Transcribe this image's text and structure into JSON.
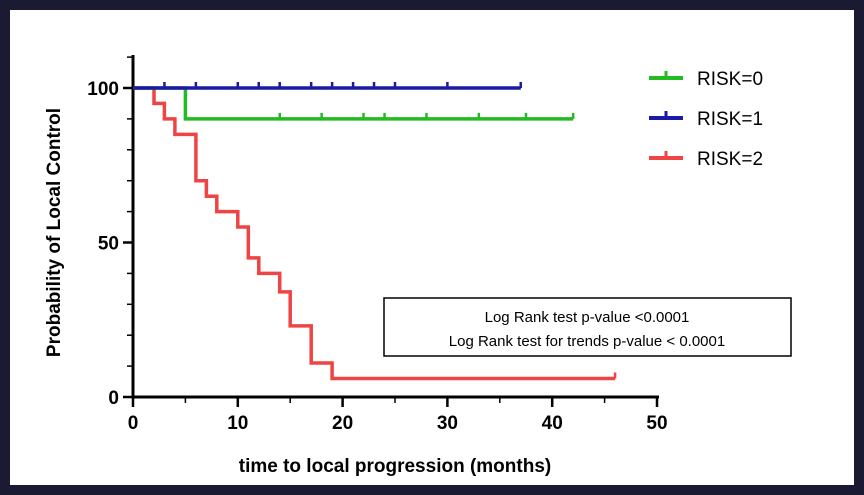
{
  "chart_data": {
    "type": "line",
    "subtype": "kaplan-meier",
    "title": "",
    "xlabel": "time to local progression (months)",
    "ylabel": "Probability of Local Control",
    "xlim": [
      0,
      50
    ],
    "ylim": [
      0,
      100
    ],
    "x_ticks": [
      0,
      10,
      20,
      30,
      40,
      50
    ],
    "y_ticks": [
      0,
      50,
      100
    ],
    "grid": false,
    "legend_position": "top-right",
    "series": [
      {
        "name": "RISK=0",
        "color": "#22bb22",
        "steps": [
          [
            0,
            100
          ],
          [
            5,
            100
          ],
          [
            5,
            90
          ],
          [
            42,
            90
          ]
        ],
        "censor_x": [
          14,
          18,
          22,
          24,
          28,
          33,
          37.5,
          42
        ]
      },
      {
        "name": "RISK=1",
        "color": "#1a1aa6",
        "steps": [
          [
            0,
            100
          ],
          [
            37,
            100
          ]
        ],
        "censor_x": [
          3,
          6,
          10,
          12,
          14,
          17,
          19,
          21,
          23,
          25,
          30,
          37
        ]
      },
      {
        "name": "RISK=2",
        "color": "#ee4444",
        "steps": [
          [
            0,
            100
          ],
          [
            2,
            100
          ],
          [
            2,
            95
          ],
          [
            3,
            95
          ],
          [
            3,
            90
          ],
          [
            4,
            90
          ],
          [
            4,
            85
          ],
          [
            6,
            85
          ],
          [
            6,
            70
          ],
          [
            7,
            70
          ],
          [
            7,
            65
          ],
          [
            8,
            65
          ],
          [
            8,
            60
          ],
          [
            10,
            60
          ],
          [
            10,
            55
          ],
          [
            11,
            55
          ],
          [
            11,
            45
          ],
          [
            12,
            45
          ],
          [
            12,
            40
          ],
          [
            14,
            40
          ],
          [
            14,
            34
          ],
          [
            15,
            34
          ],
          [
            15,
            23
          ],
          [
            17,
            23
          ],
          [
            17,
            11
          ],
          [
            19,
            11
          ],
          [
            19,
            6
          ],
          [
            46,
            6
          ]
        ],
        "censor_x": [
          46
        ]
      }
    ],
    "annotations": [
      "Log Rank test p-value <0.0001",
      "Log Rank test for trends p-value < 0.0001"
    ]
  }
}
